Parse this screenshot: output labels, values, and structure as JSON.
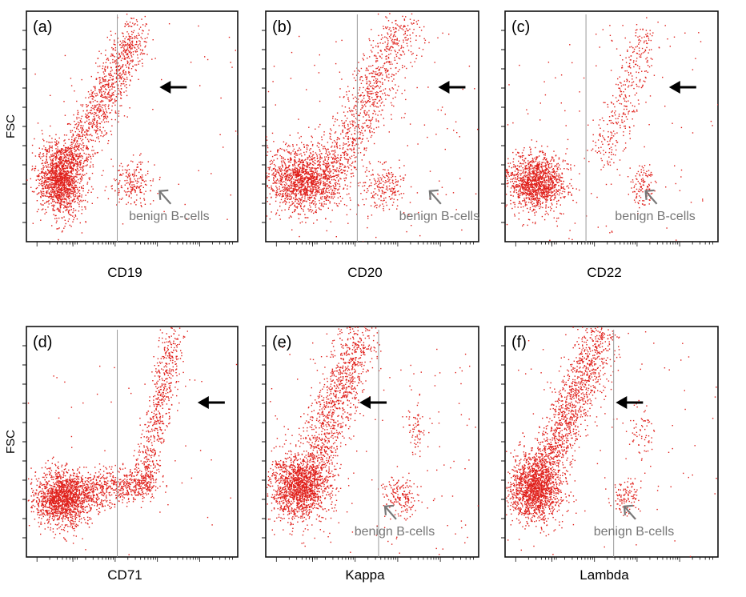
{
  "figure": {
    "ylabel": "FSC",
    "annotation_text": "benign B-cells"
  },
  "chart_data": [
    {
      "type": "scatter",
      "panel_label": "(a)",
      "xlabel": "CD19",
      "ylabel": "FSC",
      "marker_arrow": true,
      "benign_label": "benign B-cells",
      "clusters": [
        {
          "name": "main",
          "cx": 0.16,
          "cy": 0.27,
          "sx": 0.055,
          "sy": 0.08,
          "n": 1400
        },
        {
          "name": "tail",
          "type": "band",
          "x0": 0.18,
          "y0": 0.3,
          "x1": 0.52,
          "y1": 0.92,
          "w": 0.07,
          "n": 1100
        },
        {
          "name": "benign",
          "cx": 0.5,
          "cy": 0.26,
          "sx": 0.05,
          "sy": 0.05,
          "n": 200
        },
        {
          "name": "noise",
          "type": "uniform",
          "n": 60
        }
      ]
    },
    {
      "type": "scatter",
      "panel_label": "(b)",
      "xlabel": "CD20",
      "ylabel": "FSC",
      "marker_arrow": true,
      "benign_label": "benign B-cells",
      "clusters": [
        {
          "name": "main",
          "cx": 0.17,
          "cy": 0.27,
          "sx": 0.09,
          "sy": 0.07,
          "n": 1500
        },
        {
          "name": "tail",
          "type": "band",
          "x0": 0.3,
          "y0": 0.28,
          "x1": 0.65,
          "y1": 0.95,
          "w": 0.09,
          "n": 900
        },
        {
          "name": "benign",
          "cx": 0.55,
          "cy": 0.24,
          "sx": 0.05,
          "sy": 0.05,
          "n": 200
        },
        {
          "name": "noise",
          "type": "uniform",
          "n": 120
        }
      ]
    },
    {
      "type": "scatter",
      "panel_label": "(c)",
      "xlabel": "CD22",
      "ylabel": "FSC",
      "marker_arrow": true,
      "benign_label": "benign B-cells",
      "clusters": [
        {
          "name": "main",
          "cx": 0.14,
          "cy": 0.26,
          "sx": 0.07,
          "sy": 0.06,
          "n": 1300
        },
        {
          "name": "tail",
          "type": "band",
          "x0": 0.45,
          "y0": 0.35,
          "x1": 0.68,
          "y1": 0.95,
          "w": 0.07,
          "n": 350
        },
        {
          "name": "benign",
          "cx": 0.65,
          "cy": 0.24,
          "sx": 0.03,
          "sy": 0.05,
          "n": 120
        },
        {
          "name": "noise",
          "type": "uniform",
          "n": 90
        }
      ]
    },
    {
      "type": "scatter",
      "panel_label": "(d)",
      "xlabel": "CD71",
      "ylabel": "FSC",
      "marker_arrow": true,
      "benign_label": "",
      "clusters": [
        {
          "name": "main",
          "cx": 0.17,
          "cy": 0.26,
          "sx": 0.07,
          "sy": 0.06,
          "n": 1500
        },
        {
          "name": "plateau",
          "type": "band",
          "x0": 0.2,
          "y0": 0.28,
          "x1": 0.6,
          "y1": 0.32,
          "w": 0.06,
          "n": 700
        },
        {
          "name": "tail",
          "type": "band",
          "x0": 0.55,
          "y0": 0.3,
          "x1": 0.7,
          "y1": 0.98,
          "w": 0.05,
          "n": 600
        },
        {
          "name": "noise",
          "type": "uniform",
          "n": 40
        }
      ]
    },
    {
      "type": "scatter",
      "panel_label": "(e)",
      "xlabel": "Kappa",
      "ylabel": "FSC",
      "marker_arrow": true,
      "benign_label": "benign B-cells",
      "clusters": [
        {
          "name": "main",
          "cx": 0.16,
          "cy": 0.3,
          "sx": 0.07,
          "sy": 0.07,
          "n": 1500
        },
        {
          "name": "tail",
          "type": "band",
          "x0": 0.2,
          "y0": 0.35,
          "x1": 0.45,
          "y1": 0.98,
          "w": 0.09,
          "n": 1100
        },
        {
          "name": "benign",
          "cx": 0.63,
          "cy": 0.26,
          "sx": 0.04,
          "sy": 0.04,
          "n": 170
        },
        {
          "name": "upper",
          "cx": 0.7,
          "cy": 0.55,
          "sx": 0.03,
          "sy": 0.06,
          "n": 70
        },
        {
          "name": "noise",
          "type": "uniform",
          "n": 120
        }
      ]
    },
    {
      "type": "scatter",
      "panel_label": "(f)",
      "xlabel": "Lambda",
      "ylabel": "FSC",
      "marker_arrow": true,
      "benign_label": "benign B-cells",
      "clusters": [
        {
          "name": "main",
          "cx": 0.14,
          "cy": 0.3,
          "sx": 0.06,
          "sy": 0.07,
          "n": 1500
        },
        {
          "name": "tail",
          "type": "band",
          "x0": 0.18,
          "y0": 0.35,
          "x1": 0.45,
          "y1": 0.98,
          "w": 0.08,
          "n": 1200
        },
        {
          "name": "benign",
          "cx": 0.57,
          "cy": 0.26,
          "sx": 0.03,
          "sy": 0.04,
          "n": 110
        },
        {
          "name": "upper",
          "cx": 0.64,
          "cy": 0.55,
          "sx": 0.03,
          "sy": 0.06,
          "n": 60
        },
        {
          "name": "noise",
          "type": "uniform",
          "n": 80
        }
      ]
    }
  ],
  "colors": {
    "dot": "#e0201b",
    "frame": "#111111",
    "gate": "#9a9a9a",
    "benign": "#777777",
    "arrow": "#000000"
  }
}
